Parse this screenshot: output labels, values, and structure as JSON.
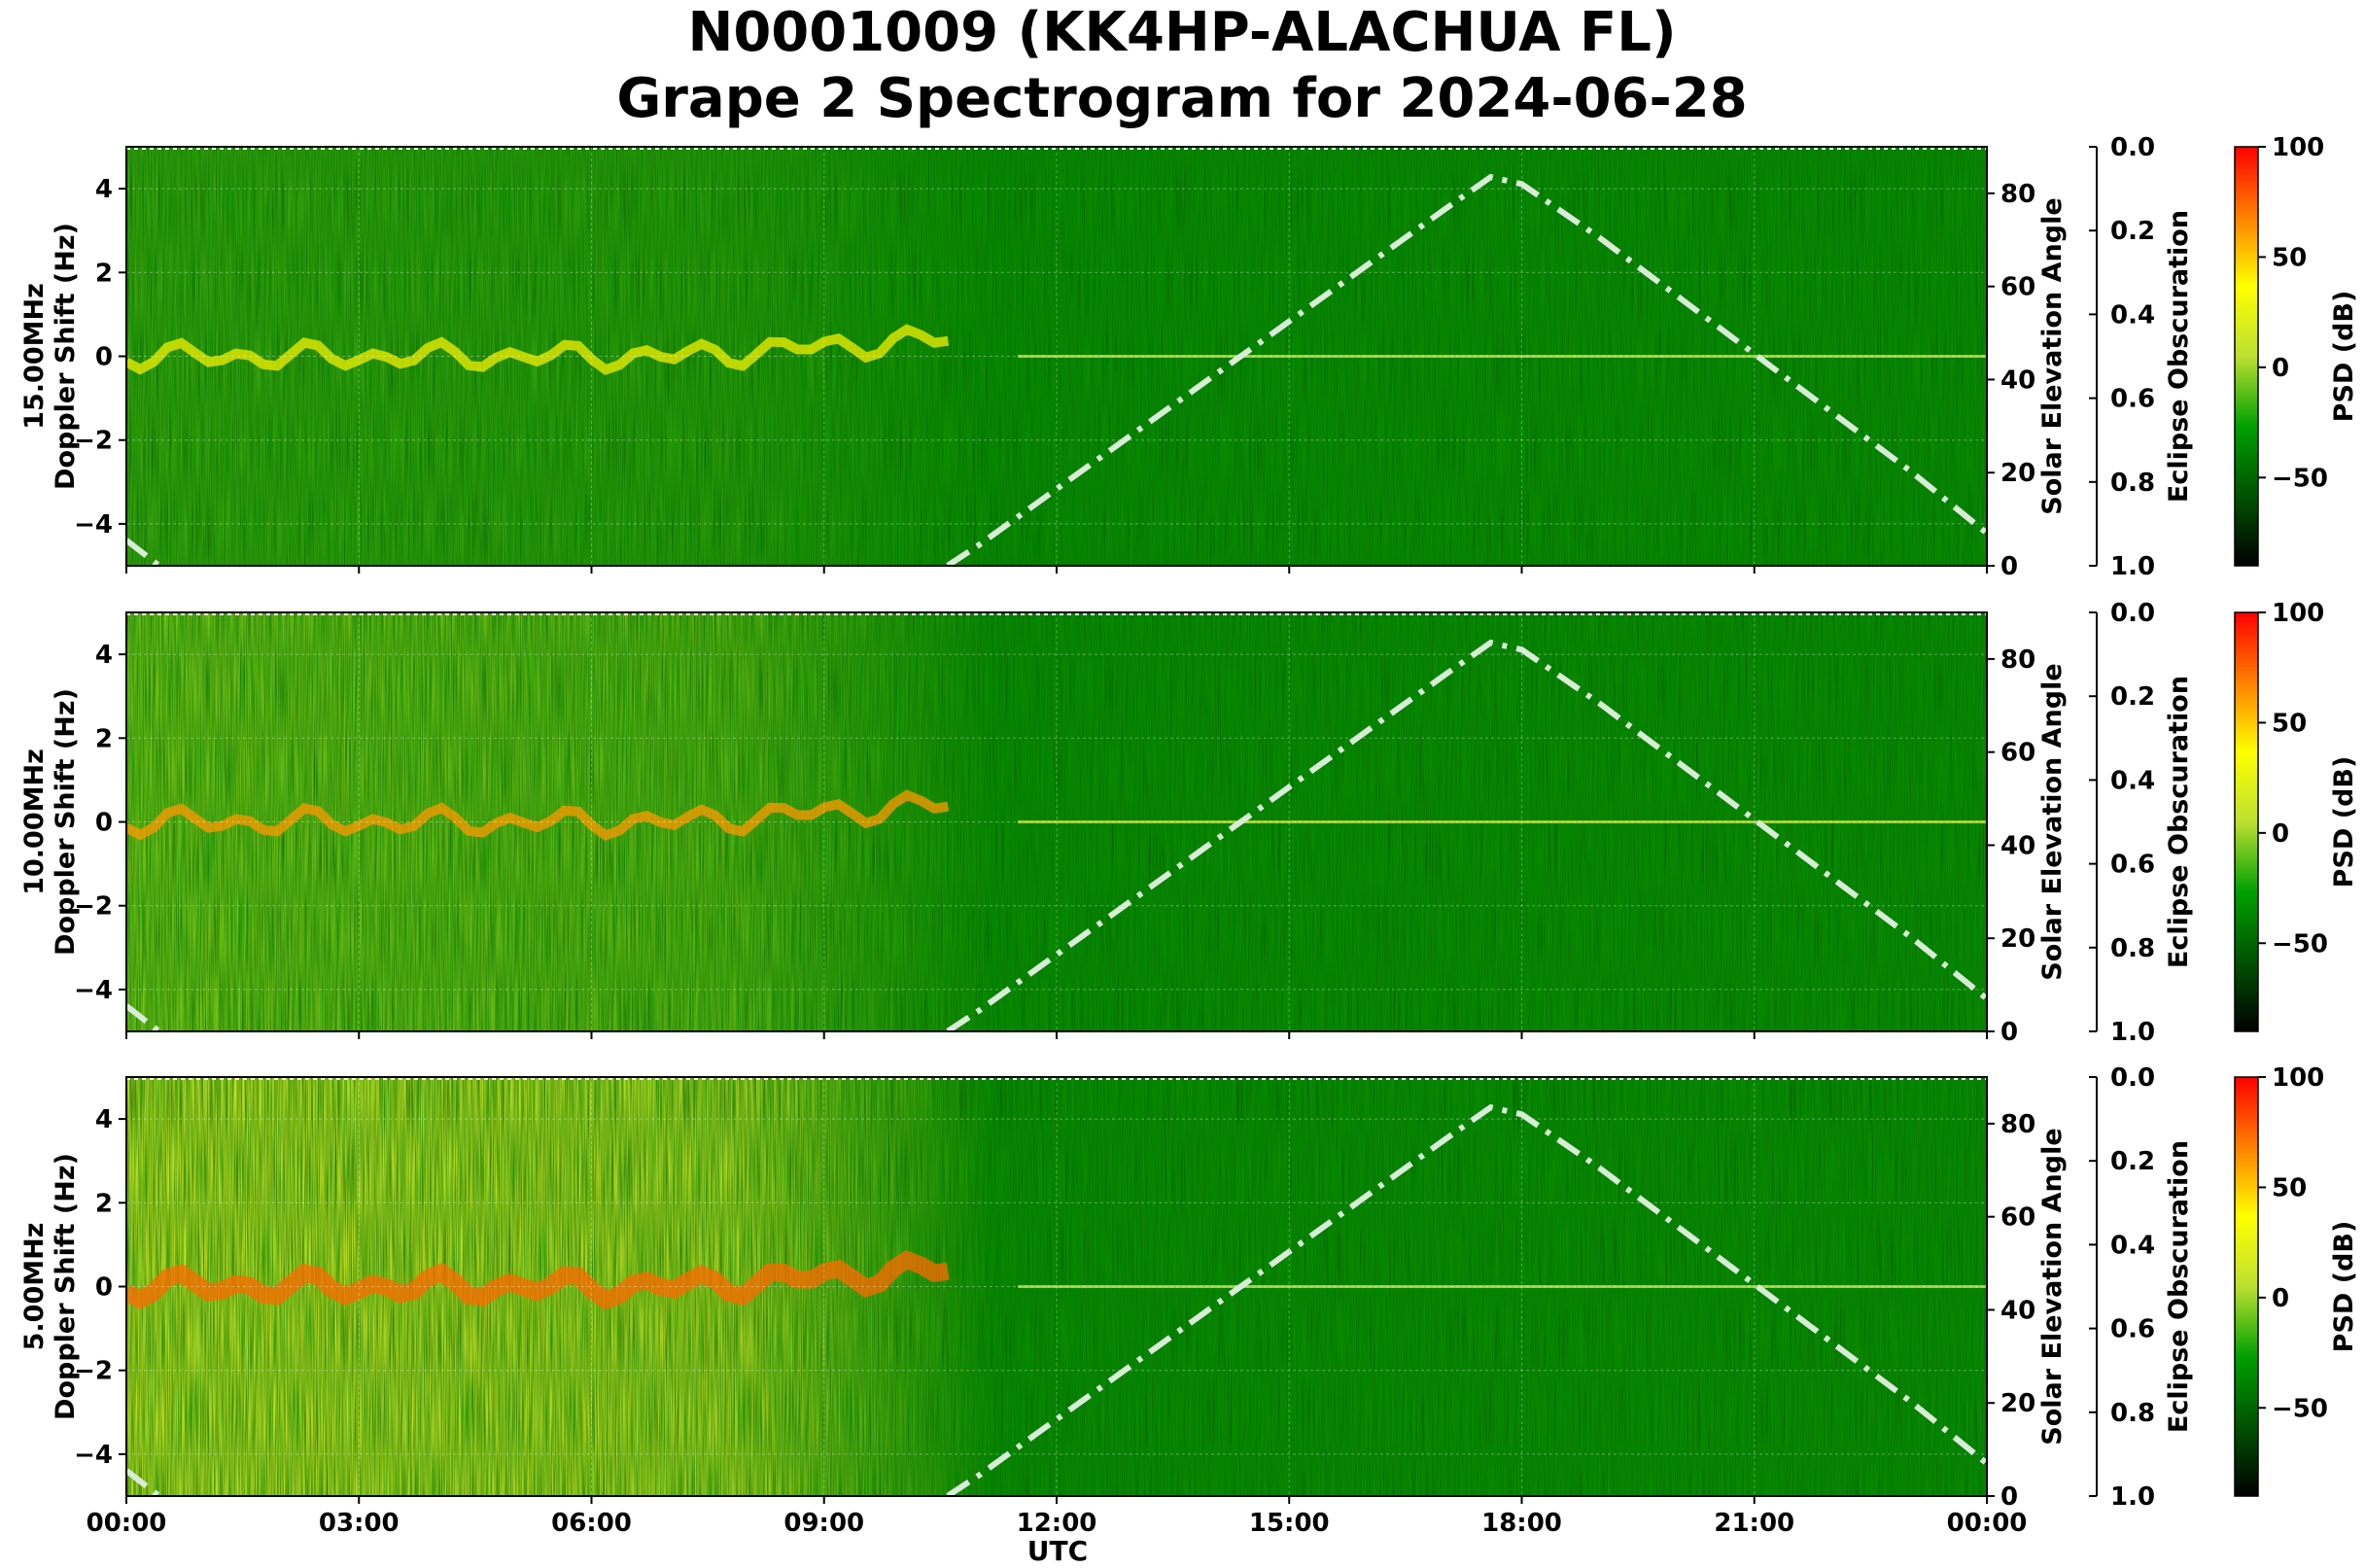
{
  "chart_data": {
    "type": "heatmap",
    "title": "N0001009 (KK4HP-ALACHUA FL)",
    "subtitle": "Grape 2 Spectrogram for 2024-06-28",
    "xlabel": "UTC",
    "x_ticks": [
      "00:00",
      "03:00",
      "06:00",
      "09:00",
      "12:00",
      "15:00",
      "18:00",
      "21:00",
      "00:00"
    ],
    "x_range_hours": [
      0,
      24
    ],
    "grid": true,
    "panels": [
      {
        "name": "15.00MHz",
        "ylabel": "15.00MHz\nDoppler Shift (Hz)",
        "ylim": [
          -5,
          5
        ],
        "y_ticks": [
          "4",
          "2",
          "0",
          "−2",
          "−4"
        ],
        "y_tick_values": [
          4,
          2,
          0,
          -2,
          -4
        ],
        "strong_signal_fraction": 0.12
      },
      {
        "name": "10.00MHz",
        "ylabel": "10.00MHz\nDoppler Shift (Hz)",
        "ylim": [
          -5,
          5
        ],
        "y_ticks": [
          "4",
          "2",
          "0",
          "−2",
          "−4"
        ],
        "y_tick_values": [
          4,
          2,
          0,
          -2,
          -4
        ],
        "strong_signal_fraction": 0.45
      },
      {
        "name": "5.00MHz",
        "ylabel": "5.00MHz\nDoppler Shift (Hz)",
        "ylim": [
          -5,
          5
        ],
        "y_ticks": [
          "4",
          "2",
          "0",
          "−2",
          "−4"
        ],
        "y_tick_values": [
          4,
          2,
          0,
          -2,
          -4
        ],
        "strong_signal_fraction": 0.85
      }
    ],
    "solar_elevation": {
      "ylabel": "Solar Elevation Angle",
      "ylim": [
        0,
        90
      ],
      "y_ticks": [
        "0",
        "20",
        "40",
        "60",
        "80"
      ],
      "y_tick_values": [
        0,
        20,
        40,
        60,
        80
      ],
      "x_hours": [
        0,
        0.5,
        1.0,
        10.5,
        11.0,
        12.0,
        13.0,
        14.0,
        15.0,
        16.0,
        17.0,
        17.6,
        18.0,
        19.0,
        20.0,
        21.0,
        22.0,
        23.0,
        24.0
      ],
      "y_degrees": [
        5.5,
        -1.0,
        -7.0,
        -1.0,
        4.5,
        16.5,
        28.5,
        40.5,
        52.5,
        64.5,
        76.5,
        83.5,
        82.0,
        70.5,
        58.0,
        45.5,
        33.0,
        20.5,
        7.0
      ],
      "line_color": "#d8ecd8",
      "line_style": "dash-dot"
    },
    "eclipse_obscuration": {
      "ylabel": "Eclipse Obscuration",
      "ylim": [
        0.0,
        1.0
      ],
      "y_ticks": [
        "0.0",
        "0.2",
        "0.4",
        "0.6",
        "0.8",
        "1.0"
      ],
      "y_tick_values": [
        0.0,
        0.2,
        0.4,
        0.6,
        0.8,
        1.0
      ]
    },
    "colorbar": {
      "label": "PSD (dB)",
      "range": [
        -90,
        100
      ],
      "ticks": [
        "100",
        "50",
        "0",
        "−50"
      ],
      "tick_values": [
        100,
        50,
        0,
        -50
      ],
      "colormap": [
        "#000000",
        "#005200",
        "#00a000",
        "#bce032",
        "#ffff00",
        "#ff8000",
        "#ff0000"
      ]
    }
  }
}
